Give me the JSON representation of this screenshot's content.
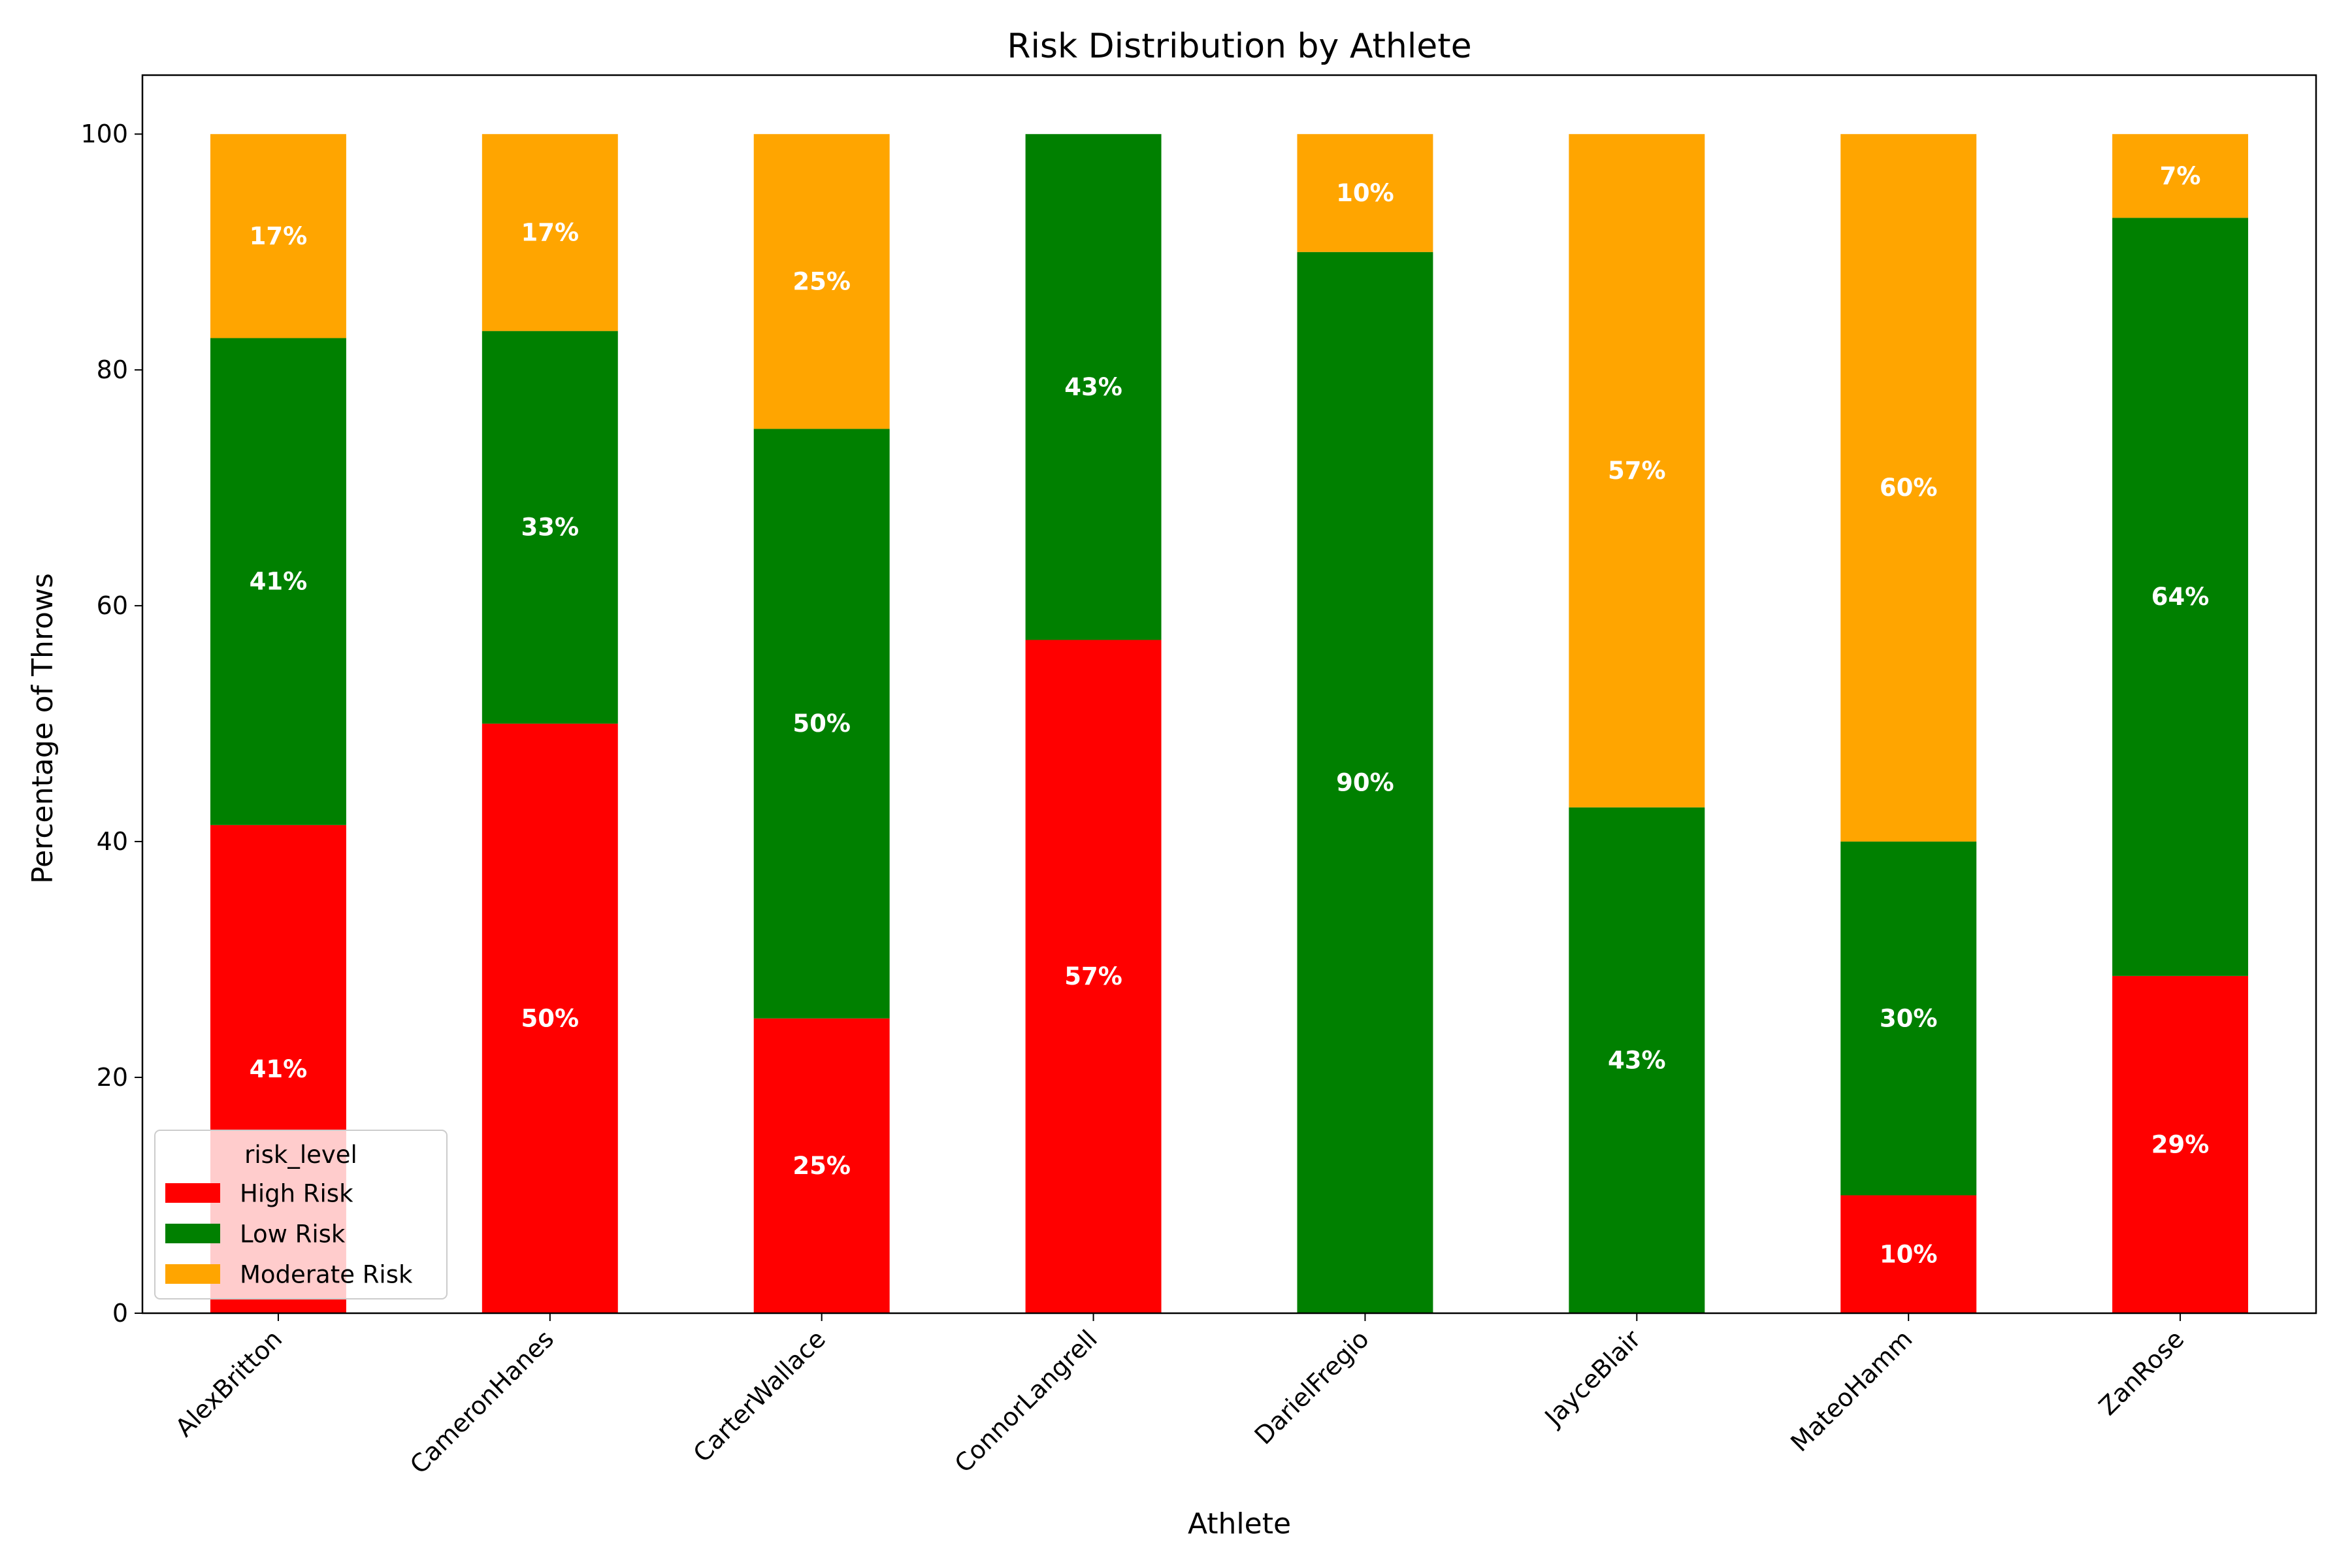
{
  "chart_data": {
    "type": "bar",
    "stacked": true,
    "title": "Risk Distribution by Athlete",
    "xlabel": "Athlete",
    "ylabel": "Percentage of Throws",
    "ylim": [
      0,
      105
    ],
    "yticks": [
      0,
      20,
      40,
      60,
      80,
      100
    ],
    "grid": false,
    "categories": [
      "AlexBritton",
      "CameronHanes",
      "CarterWallace",
      "ConnorLangrell",
      "DarielFregio",
      "JayceBlair",
      "MateoHamm",
      "ZanRose"
    ],
    "series": [
      {
        "name": "High Risk",
        "color": "#ff0000",
        "values": [
          41.4,
          50.0,
          25.0,
          57.1,
          0,
          0,
          10.0,
          28.6
        ]
      },
      {
        "name": "Low Risk",
        "color": "#008000",
        "values": [
          41.3,
          33.3,
          50.0,
          42.9,
          90.0,
          42.9,
          30.0,
          64.3
        ]
      },
      {
        "name": "Moderate Risk",
        "color": "#ffa500",
        "values": [
          17.3,
          16.7,
          25.0,
          0,
          10.0,
          57.1,
          60.0,
          7.1
        ]
      }
    ],
    "legend": {
      "title": "risk_level",
      "position": "lower-left"
    }
  }
}
